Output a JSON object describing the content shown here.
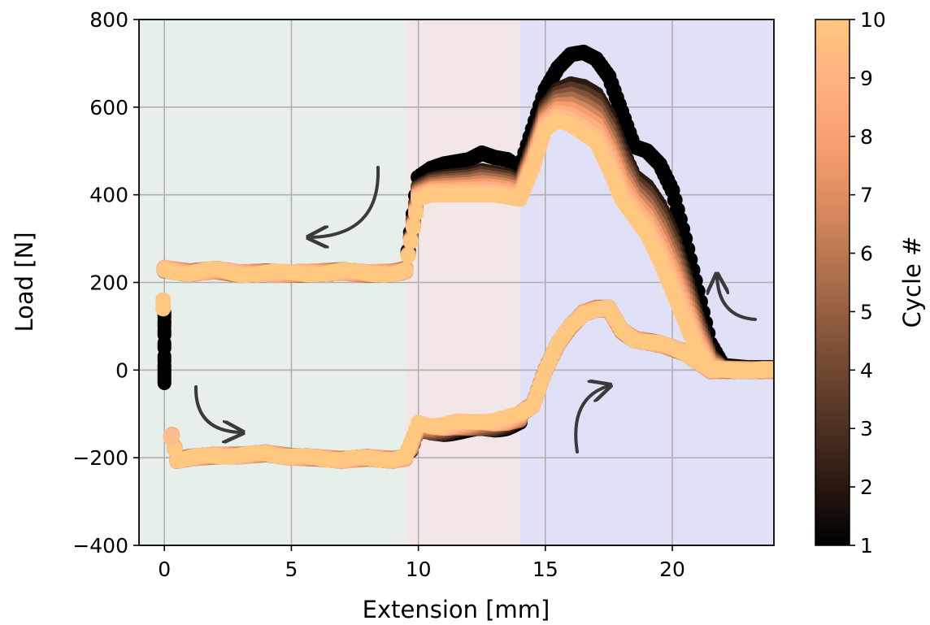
{
  "chart_data": {
    "type": "scatter",
    "xlabel": "Extension [mm]",
    "ylabel": "Load [N]",
    "xlim": [
      -1,
      24
    ],
    "ylim": [
      -400,
      800
    ],
    "xticks": [
      "0",
      "5",
      "10",
      "15",
      "20"
    ],
    "yticks": [
      "−400",
      "−200",
      "0",
      "200",
      "400",
      "600",
      "800"
    ],
    "grid": true,
    "regions": [
      {
        "x": [
          -1,
          9.5
        ],
        "color": "#e6efe9"
      },
      {
        "x": [
          9.5,
          14
        ],
        "color": "#f3e6e6"
      },
      {
        "x": [
          14,
          24
        ],
        "color": "#e0e0f7"
      }
    ],
    "colorbar": {
      "label": "Cycle #",
      "range": [
        1,
        10
      ],
      "ticks": [
        "1",
        "2",
        "3",
        "4",
        "5",
        "6",
        "7",
        "8",
        "9",
        "10"
      ],
      "colors": [
        "#000000",
        "#2b1a12",
        "#553625",
        "#7f5137",
        "#a96c4a",
        "#d1865b",
        "#f59d6e",
        "#ffae80",
        "#ffbd8c",
        "#ffc77f"
      ]
    },
    "series": [
      {
        "cycle": 1,
        "loading_x": [
          0,
          0,
          0,
          0,
          0,
          0,
          0,
          0
        ],
        "loading_y": [
          -30,
          -15,
          0,
          20,
          50,
          80,
          100,
          120
        ],
        "upper_x": [
          9.5,
          10.0,
          10.5,
          11.0,
          11.5,
          12.0,
          12.5,
          13.0,
          13.5,
          14.0,
          14.5,
          15.0,
          15.5,
          16.0,
          16.5,
          17.0,
          17.5,
          18.0,
          18.5,
          19.0,
          19.5,
          20.0,
          20.5,
          21.0,
          21.5,
          22.0,
          23.0,
          24.0
        ],
        "upper_y": [
          230,
          440,
          460,
          470,
          475,
          480,
          495,
          485,
          480,
          460,
          550,
          640,
          690,
          720,
          725,
          710,
          670,
          590,
          510,
          500,
          470,
          410,
          300,
          180,
          60,
          10,
          5,
          5
        ]
      },
      {
        "cycle": 10,
        "upper_x": [
          0,
          1,
          2,
          3,
          4,
          5,
          6,
          7,
          8,
          9,
          9.5,
          10.0,
          10.5,
          11.0,
          11.5,
          12.0,
          12.5,
          13.0,
          13.5,
          14.0,
          14.5,
          15.0,
          15.5,
          16.0,
          16.5,
          17.0,
          17.5,
          18.0,
          18.5,
          19.0,
          19.5,
          20.0,
          20.5,
          21.0,
          21.5,
          22.0,
          23.0,
          24.0
        ],
        "upper_y": [
          230,
          222,
          228,
          220,
          222,
          220,
          222,
          225,
          220,
          222,
          228,
          390,
          400,
          400,
          400,
          400,
          400,
          400,
          395,
          390,
          460,
          550,
          570,
          560,
          540,
          520,
          460,
          390,
          350,
          310,
          250,
          180,
          110,
          40,
          0,
          0,
          0,
          0
        ],
        "lower_x": [
          0,
          0.1,
          0.3,
          0.5,
          1,
          2,
          3,
          4,
          5,
          6,
          7,
          8,
          9,
          9.5,
          10.0,
          10.5,
          11.0,
          11.5,
          12.0,
          12.5,
          13.0,
          13.5,
          14.0,
          14.5,
          15.0,
          15.5,
          16.0,
          16.5,
          17.0,
          17.5,
          18.0,
          18.5,
          19.0,
          19.5,
          20.0,
          20.5,
          21.0,
          21.5,
          22.0,
          23.0,
          24.0
        ],
        "lower_y": [
          160,
          140,
          -150,
          -205,
          -200,
          -195,
          -195,
          -190,
          -198,
          -200,
          -205,
          -200,
          -205,
          -200,
          -120,
          -125,
          -125,
          -120,
          -118,
          -115,
          -115,
          -110,
          -100,
          -80,
          0,
          60,
          100,
          130,
          140,
          140,
          90,
          70,
          65,
          60,
          50,
          40,
          20,
          0,
          0,
          0,
          0
        ]
      }
    ],
    "annotations": [
      "arrow-upper-left",
      "arrow-lower-left",
      "arrow-lower-right",
      "arrow-upper-right"
    ]
  }
}
